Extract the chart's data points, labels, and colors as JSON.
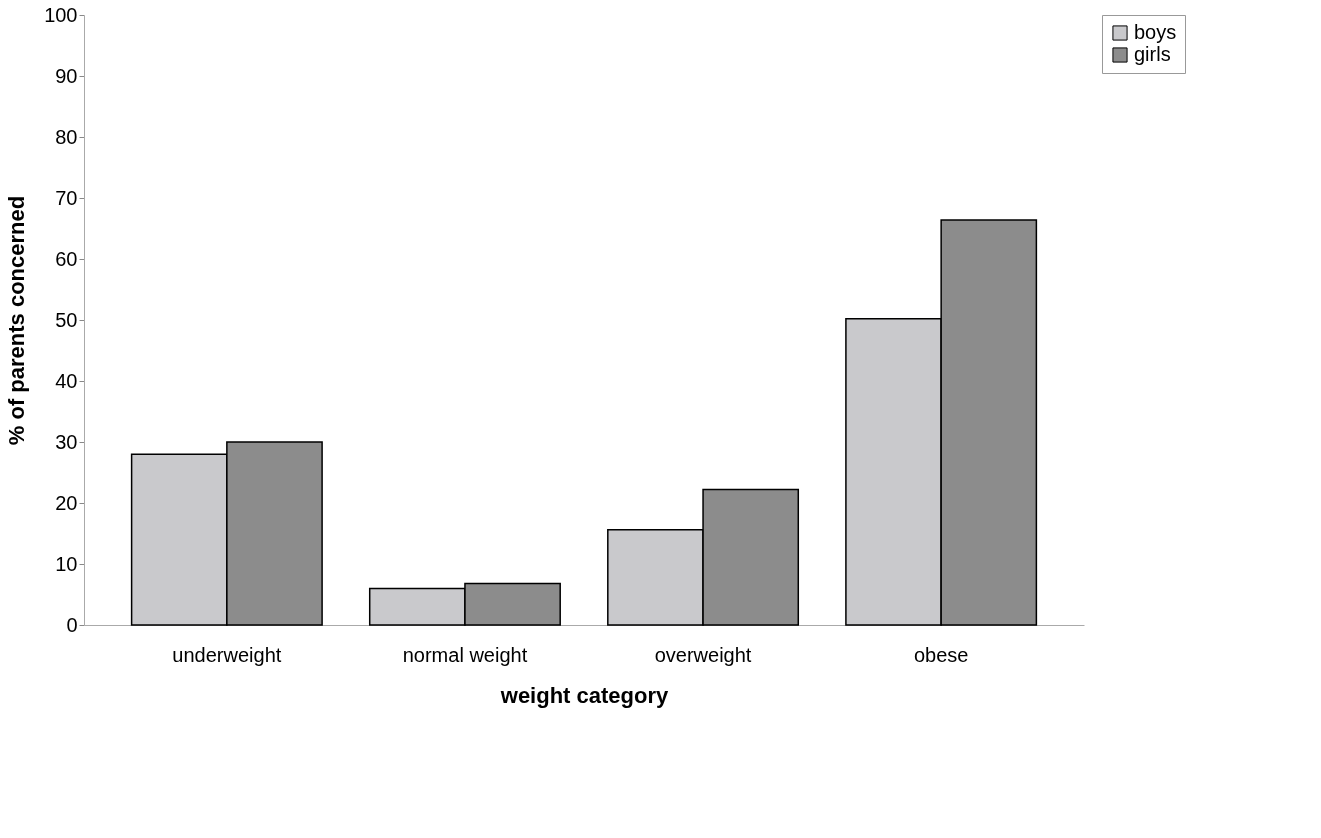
{
  "chart_data": {
    "type": "bar",
    "xlabel": "weight category",
    "ylabel": "% of parents concerned",
    "categories": [
      "underweight",
      "normal weight",
      "overweight",
      "obese"
    ],
    "series": [
      {
        "name": "boys",
        "color": "#c9c9cc",
        "values": [
          28,
          6,
          15.6,
          50.2
        ]
      },
      {
        "name": "girls",
        "color": "#8c8c8c",
        "values": [
          30,
          6.8,
          22.2,
          66.4
        ]
      }
    ],
    "ylim": [
      0,
      100
    ],
    "yticks": [
      0,
      10,
      20,
      30,
      40,
      50,
      60,
      70,
      80,
      90,
      100
    ],
    "grid": false,
    "legend": "right"
  }
}
